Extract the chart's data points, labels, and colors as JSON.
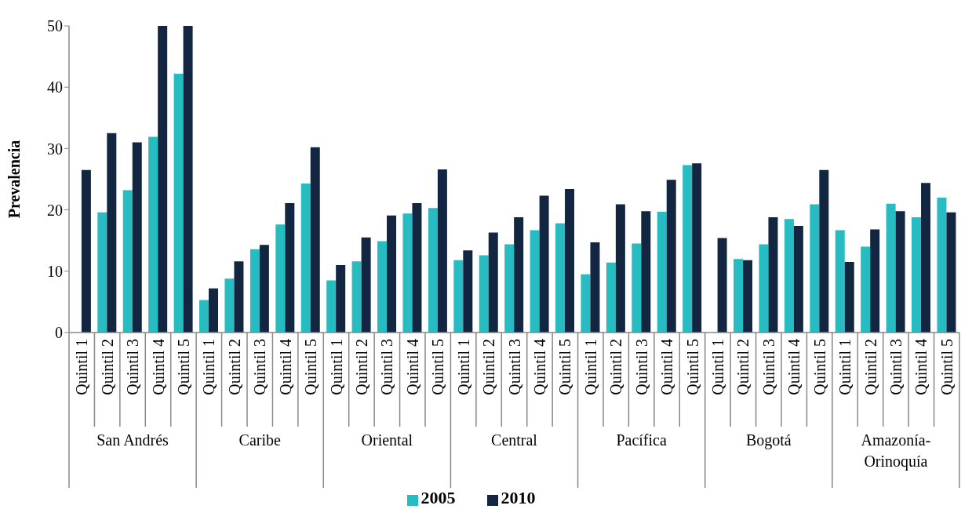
{
  "chart_data": {
    "type": "bar",
    "ylabel": "Prevalencia",
    "categories": [
      "Quintil 1",
      "Quintil 2",
      "Quintil 3",
      "Quintil 4",
      "Quintil 5",
      "Quintil 1",
      "Quintil 2",
      "Quintil 3",
      "Quintil 4",
      "Quintil 5",
      "Quintil 1",
      "Quintil 2",
      "Quintil 3",
      "Quintil 4",
      "Quintil 5",
      "Quintil 1",
      "Quintil 2",
      "Quintil 3",
      "Quintil 4",
      "Quintil 5",
      "Quintil 1",
      "Quintil 2",
      "Quintil 3",
      "Quintil 4",
      "Quintil 5",
      "Quintil 1",
      "Quintil 2",
      "Quintil 3",
      "Quintil 4",
      "Quintil 5",
      "Quintil 1",
      "Quintil 2",
      "Quintil 3",
      "Quintil 4",
      "Quintil 5"
    ],
    "annotations": [
      "San Andrés",
      "Caribe",
      "Oriental",
      "Central",
      "Pacífica",
      "Bogotá",
      "Amazonía-Orinoquía"
    ],
    "series": [
      {
        "name": "2005",
        "color": "#27bbc2",
        "values": [
          null,
          19.6,
          23.2,
          31.9,
          42.2,
          5.3,
          8.8,
          13.6,
          17.6,
          24.3,
          8.5,
          11.6,
          14.9,
          19.4,
          20.3,
          11.8,
          12.6,
          14.4,
          16.7,
          17.8,
          9.5,
          11.4,
          14.5,
          19.7,
          27.3,
          null,
          12.0,
          14.4,
          18.5,
          20.9,
          16.7,
          14.0,
          21.0,
          18.8,
          22.0
        ]
      },
      {
        "name": "2010",
        "color": "#122641",
        "values": [
          26.5,
          32.5,
          31.0,
          50,
          50,
          7.2,
          11.6,
          14.3,
          21.1,
          30.2,
          11.0,
          15.5,
          19.1,
          21.1,
          26.6,
          13.4,
          16.3,
          18.8,
          22.3,
          23.4,
          14.7,
          20.9,
          19.8,
          24.9,
          27.6,
          15.4,
          11.8,
          18.8,
          17.4,
          26.5,
          11.5,
          16.8,
          19.8,
          24.4,
          19.6
        ]
      }
    ],
    "ylim": [
      0,
      50
    ],
    "yticks": [
      0,
      10,
      20,
      30,
      40,
      50
    ],
    "grid": false,
    "legend": "bottom"
  }
}
